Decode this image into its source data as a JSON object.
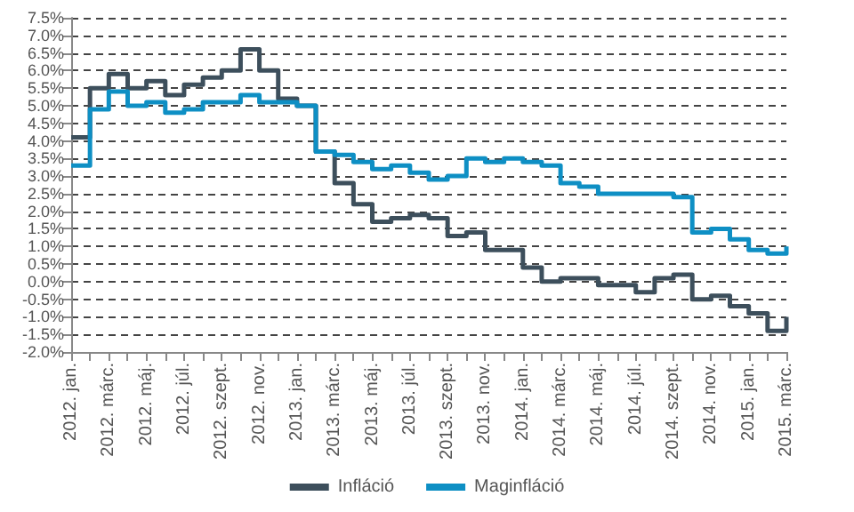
{
  "chart_data": {
    "type": "step",
    "categories": [
      "2012. jan.",
      null,
      "2012. márc.",
      null,
      "2012. máj.",
      null,
      "2012. júl.",
      null,
      "2012. szept.",
      null,
      "2012. nov.",
      null,
      "2013. jan.",
      null,
      "2013. márc.",
      null,
      "2013. máj.",
      null,
      "2013. júl.",
      null,
      "2013. szept.",
      null,
      "2013. nov.",
      null,
      "2014. jan.",
      null,
      "2014. márc.",
      null,
      "2014. máj.",
      null,
      "2014. júl.",
      null,
      "2014. szept.",
      null,
      "2014. nov.",
      null,
      "2015. jan.",
      null,
      "2015. márc."
    ],
    "series": [
      {
        "name": "Infláció",
        "color": "#3d4f5c",
        "values": [
          4.1,
          5.5,
          5.9,
          5.5,
          5.7,
          5.3,
          5.6,
          5.8,
          6.0,
          6.6,
          6.0,
          5.2,
          5.0,
          3.7,
          2.8,
          2.2,
          1.7,
          1.8,
          1.9,
          1.8,
          1.3,
          1.4,
          0.9,
          0.9,
          0.4,
          0.0,
          0.1,
          0.1,
          -0.1,
          -0.1,
          -0.3,
          0.1,
          0.2,
          -0.5,
          -0.4,
          -0.7,
          -0.9,
          -1.4,
          -1.0
        ]
      },
      {
        "name": "Maginfláció",
        "color": "#0e8fc4",
        "values": [
          3.3,
          4.9,
          5.4,
          5.0,
          5.1,
          4.8,
          4.9,
          5.1,
          5.1,
          5.3,
          5.1,
          5.1,
          5.0,
          3.7,
          3.6,
          3.4,
          3.2,
          3.3,
          3.1,
          2.9,
          3.0,
          3.5,
          3.4,
          3.5,
          3.4,
          3.3,
          2.8,
          2.7,
          2.5,
          2.5,
          2.5,
          2.5,
          2.4,
          1.4,
          1.5,
          1.2,
          0.9,
          0.8,
          1.0
        ]
      }
    ],
    "ylim": [
      -2.0,
      7.5
    ],
    "yticks": [
      {
        "value": -2.0,
        "label": "-2.0%"
      },
      {
        "value": -1.5,
        "label": "-1.5%"
      },
      {
        "value": -1.0,
        "label": "-1.0%"
      },
      {
        "value": -0.5,
        "label": "-0.5%"
      },
      {
        "value": 0.0,
        "label": "0.0%"
      },
      {
        "value": 0.5,
        "label": "0.5%"
      },
      {
        "value": 1.0,
        "label": "1.0%"
      },
      {
        "value": 1.5,
        "label": "1.5%"
      },
      {
        "value": 2.0,
        "label": "2.0%"
      },
      {
        "value": 2.5,
        "label": "2.5%"
      },
      {
        "value": 3.0,
        "label": "3.0%"
      },
      {
        "value": 3.5,
        "label": "3.5%"
      },
      {
        "value": 4.0,
        "label": "4.0%"
      },
      {
        "value": 4.5,
        "label": "4.5%"
      },
      {
        "value": 5.0,
        "label": "5.0%"
      },
      {
        "value": 5.5,
        "label": "5.5%"
      },
      {
        "value": 6.0,
        "label": "6.0%"
      },
      {
        "value": 6.5,
        "label": "6.5%"
      },
      {
        "value": 7.0,
        "label": "7.0%"
      },
      {
        "value": 7.5,
        "label": "7.5%"
      }
    ],
    "grid": "y",
    "legend": "bottom",
    "marker": "none"
  }
}
